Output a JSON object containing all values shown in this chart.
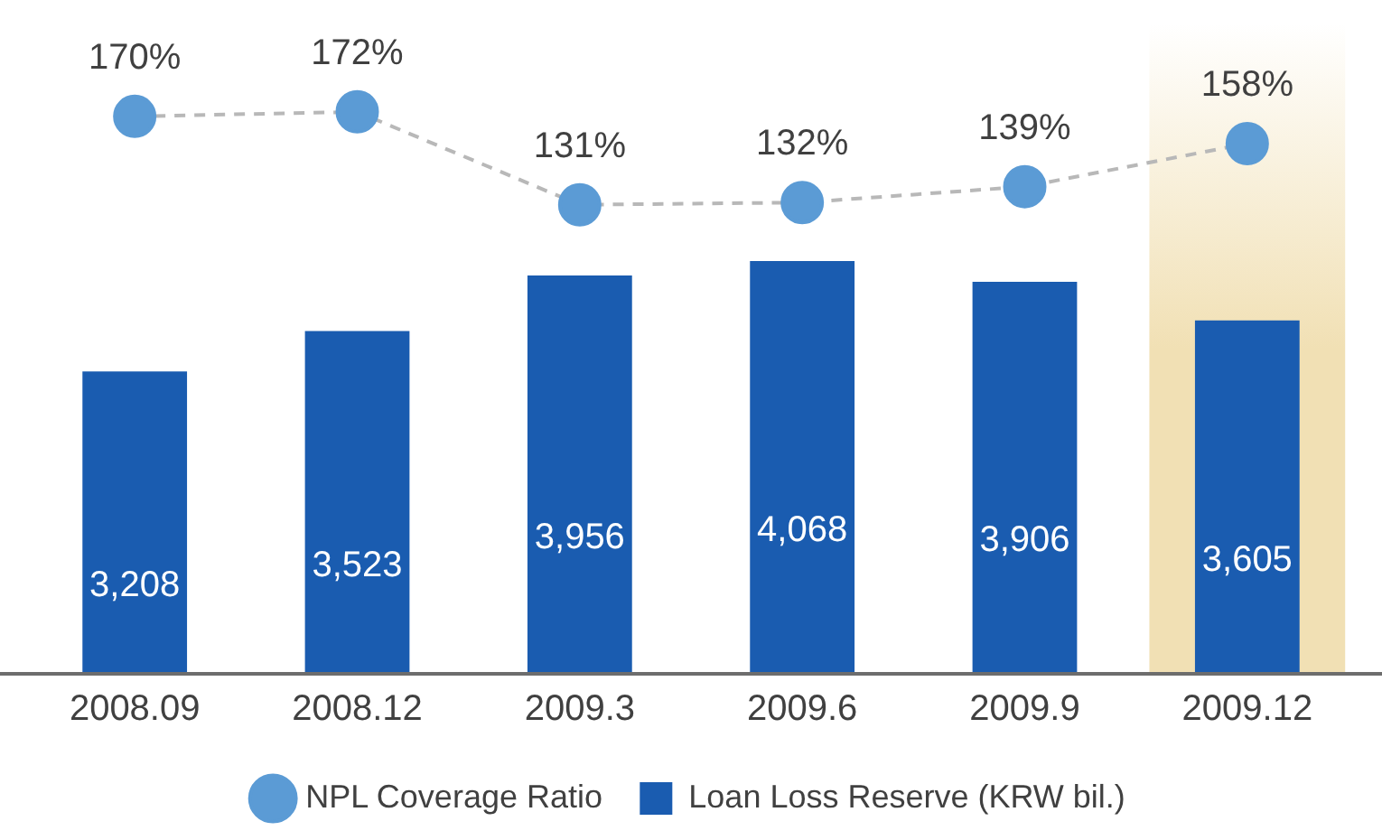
{
  "chart_data": {
    "type": "bar",
    "categories": [
      "2008.09",
      "2008.12",
      "2009.3",
      "2009.6",
      "2009.9",
      "2009.12"
    ],
    "series": [
      {
        "name": "NPL Coverage Ratio",
        "type": "line",
        "axis": "y2",
        "color": "#5b9bd5",
        "line_style": "dashed",
        "marker": "circle",
        "values": [
          170,
          172,
          131,
          132,
          139,
          158
        ],
        "value_labels": [
          "170%",
          "172%",
          "131%",
          "132%",
          "139%",
          "158%"
        ]
      },
      {
        "name": "Loan Loss Reserve (KRW bil.)",
        "color": "#1a5cb0",
        "values": [
          3208,
          3523,
          3956,
          4068,
          3906,
          3605
        ],
        "value_labels": [
          "3,208",
          "3,523",
          "3,956",
          "4,068",
          "3,906",
          "3,605"
        ]
      }
    ],
    "ylim": [
      850,
      5920
    ],
    "y2lim": [
      -76,
      211
    ],
    "bands": [
      {
        "axis": "x",
        "from": "2009.12",
        "to": "2009.12",
        "color": "#f1e0b4"
      }
    ],
    "grid": false,
    "legend": "bottom",
    "relative": false
  }
}
